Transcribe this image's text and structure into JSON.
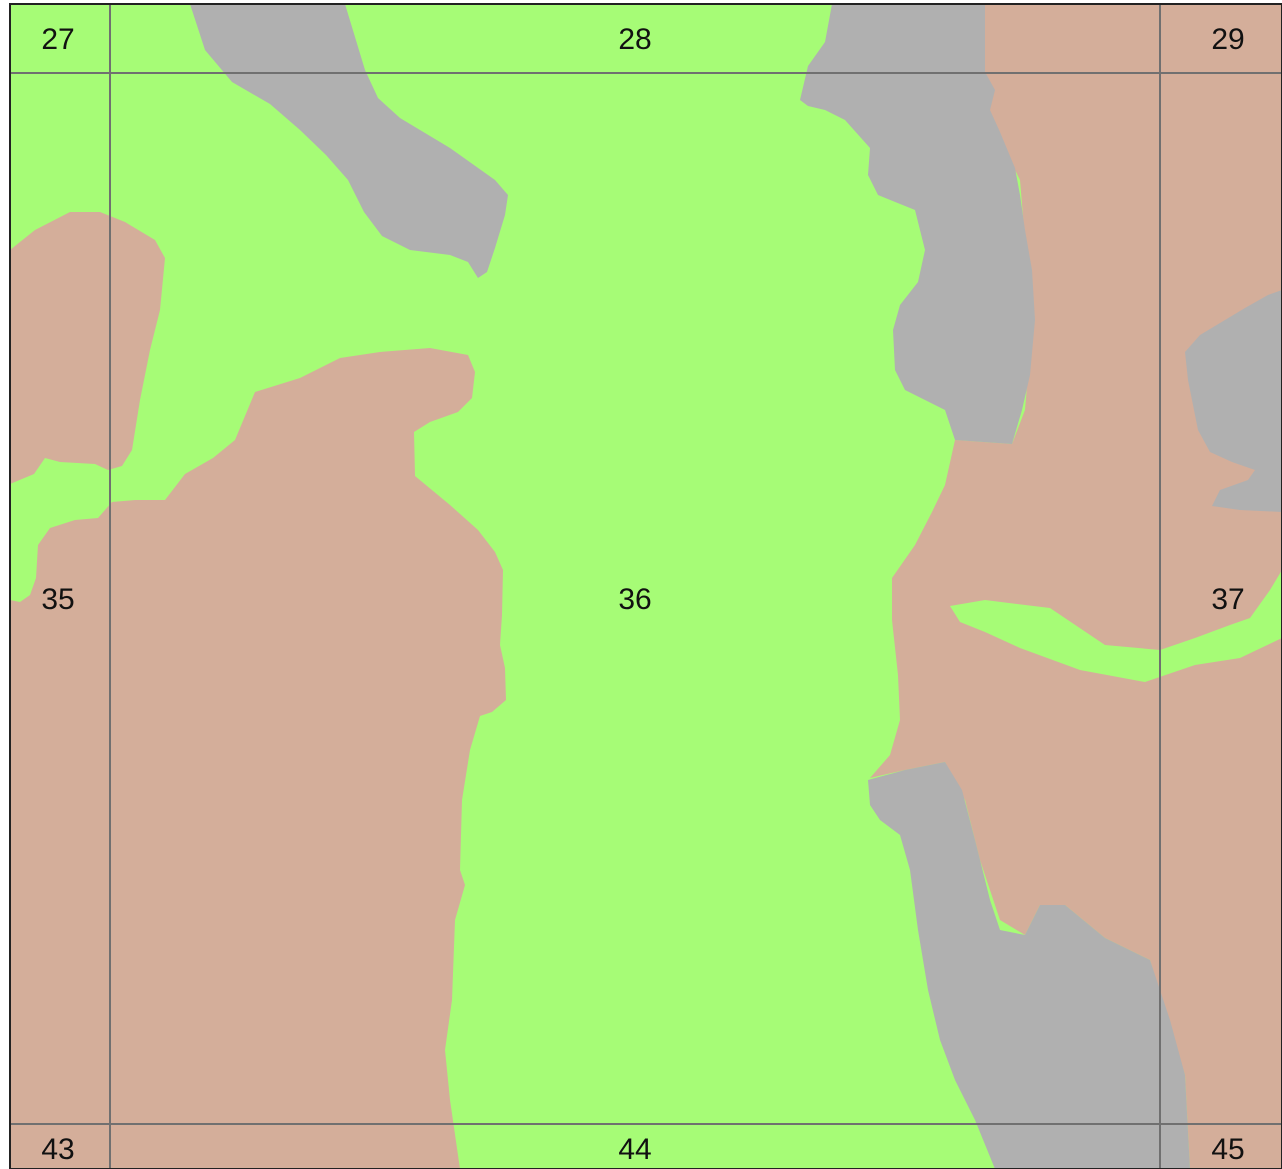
{
  "map": {
    "type": "land-cover map with section grid",
    "colors": {
      "green": "#a6fc76",
      "tan": "#d4ae9a",
      "gray": "#b0b0b0",
      "grid_line": "#707070",
      "border": "#222222"
    },
    "sections": [
      "27",
      "28",
      "29",
      "35",
      "36",
      "37",
      "43",
      "44",
      "45"
    ]
  }
}
